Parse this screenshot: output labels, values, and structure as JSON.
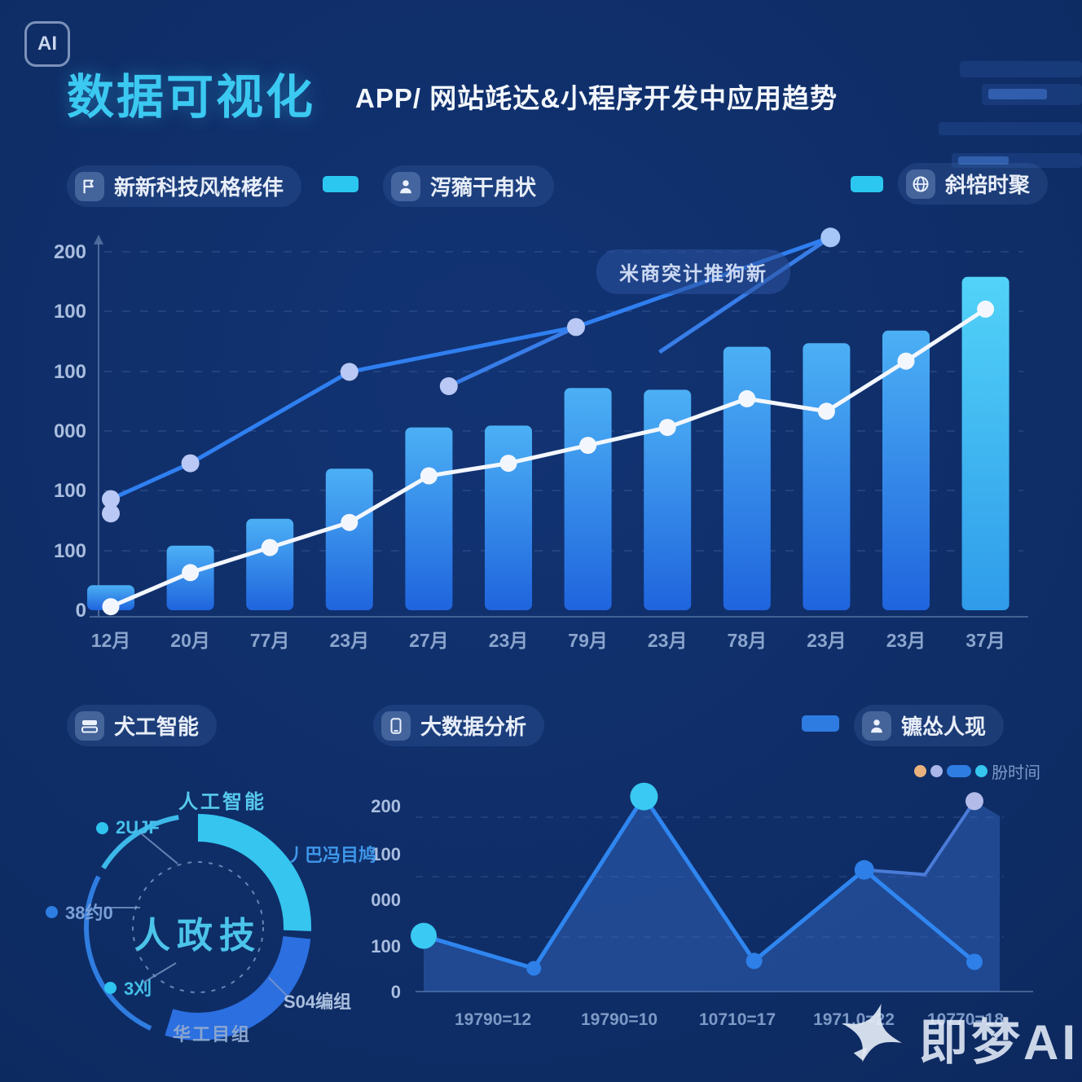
{
  "badge": "AI",
  "header": {
    "title": "数据可视化",
    "subtitle": "APP/ 网站竓达&小程序开发中应用趋势"
  },
  "legends_top": [
    {
      "icon": "flag-icon",
      "label": "新新科技风格栳仹"
    },
    {
      "icon": "person-icon",
      "label": "泻豴干甪状"
    },
    {
      "icon": "globe-icon",
      "label": "斜犃时聚"
    }
  ],
  "legend_swatch_color": "#2bc7f1",
  "legends_mid": [
    {
      "icon": "cards-icon",
      "label": "犬工智能"
    },
    {
      "icon": "phone-icon",
      "label": "大数据分析"
    },
    {
      "icon": "user-icon",
      "label": "镳怂人现"
    }
  ],
  "mid_swatch_color": "#2e7ce2",
  "watermark": "即梦AI",
  "chart_data": [
    {
      "type": "bar",
      "title": "",
      "categories": [
        "12月",
        "20月",
        "77月",
        "23月",
        "27月",
        "23月",
        "79月",
        "23月",
        "78月",
        "23月",
        "23月",
        "37月"
      ],
      "y_tick_labels": [
        "200",
        "100",
        "100",
        "000",
        "100",
        "100",
        "0"
      ],
      "ylim": [
        0,
        200
      ],
      "grid": "dashed-horizontal",
      "bar_values": [
        14,
        36,
        51,
        79,
        102,
        103,
        124,
        123,
        147,
        149,
        156,
        186
      ],
      "bar_gradient": [
        "#4cb0f5",
        "#1f64dd"
      ],
      "bar_gradient_last": [
        "#52d3f8",
        "#2f9bea"
      ],
      "white_line": {
        "color": "#f3f7fd",
        "values": [
          2,
          21,
          35,
          49,
          75,
          82,
          92,
          102,
          118,
          111,
          139,
          168
        ]
      },
      "blue_line": {
        "color": "#2f7ff0",
        "points": [
          [
            0,
            62
          ],
          [
            1,
            82
          ],
          [
            3,
            133
          ],
          [
            5.85,
            158
          ],
          [
            9.05,
            208
          ]
        ]
      },
      "blue_line_extra_dots": [
        [
          0,
          54
        ],
        [
          4.25,
          125
        ]
      ],
      "blue_segments": [
        [
          [
            4.25,
            125
          ],
          [
            5.85,
            158
          ]
        ],
        [
          [
            6.9,
            144
          ],
          [
            8.98,
            206
          ]
        ]
      ],
      "annotation": "米商突计推狗新"
    },
    {
      "type": "pie",
      "center_label": "人政技",
      "segments": [
        {
          "label": "人工智能",
          "color": "#35c5ef",
          "start_deg": 0,
          "end_deg": 92,
          "thick": true
        },
        {
          "label": "S04编组",
          "color": "#2b6fe0",
          "start_deg": 96,
          "end_deg": 197,
          "thick": true
        },
        {
          "label": "38约0",
          "color": "#2f7de0",
          "start_deg": 205,
          "end_deg": 297,
          "thick": false
        },
        {
          "label": "2UJF",
          "color": "#3cb9ea",
          "start_deg": 302,
          "end_deg": 350,
          "thick": false
        }
      ],
      "callouts": {
        "top": "人工智能",
        "right": "丿巴冯目鸠",
        "left_top": "2UJF",
        "left_mid": "38约0",
        "left_bottom": "3刈",
        "bottom_right": "S04编组",
        "bottom": "华工目组"
      }
    },
    {
      "type": "line",
      "x_labels": [
        "19790=12",
        "19790=10",
        "10710=17",
        "1971.0=22",
        "10770=18"
      ],
      "y_tick_labels": [
        "200",
        "100",
        "000",
        "100",
        "0"
      ],
      "ylim": [
        0,
        200
      ],
      "grid": "dashed-horizontal",
      "series": [
        {
          "name": "primary",
          "color": "#2f86f0",
          "x": [
            0,
            1,
            2,
            3,
            4,
            5
          ],
          "values": [
            60,
            25,
            210,
            33,
            131,
            32
          ]
        },
        {
          "name": "secondary",
          "color": "#4a7bd8",
          "x": [
            4,
            4.55,
            5
          ],
          "values": [
            131,
            126,
            205
          ]
        }
      ],
      "area_points": [
        [
          0,
          60
        ],
        [
          1,
          25
        ],
        [
          2,
          210
        ],
        [
          3,
          33
        ],
        [
          4,
          131
        ],
        [
          4.55,
          126
        ],
        [
          5,
          205
        ],
        [
          5.23,
          189
        ]
      ],
      "area_fill": "rgba(58,112,208,0.42)",
      "mini_legend_label": "朌时间"
    }
  ]
}
